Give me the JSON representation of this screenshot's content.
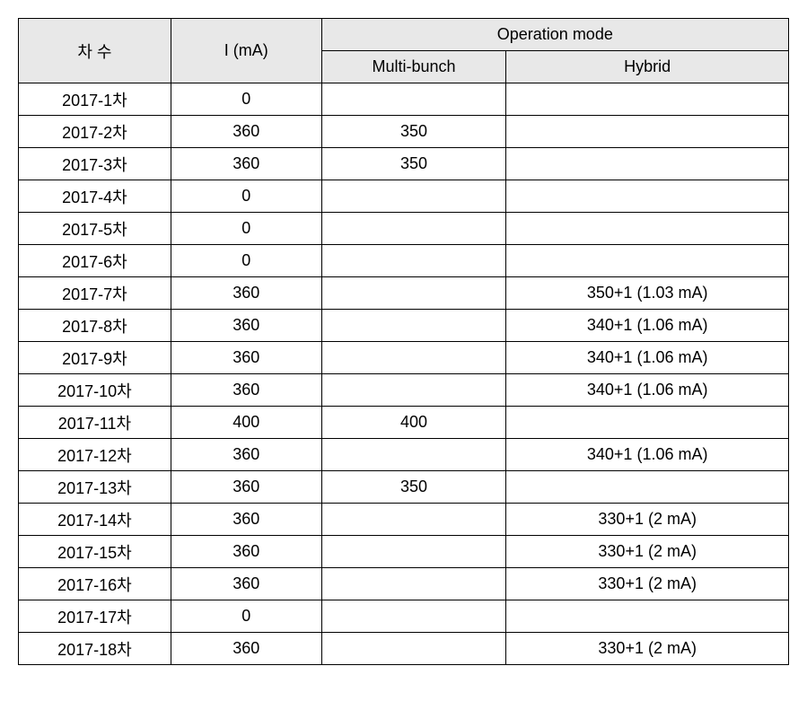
{
  "table": {
    "background_color": "#ffffff",
    "header_background_color": "#e8e8e8",
    "border_color": "#000000",
    "font_size": 18,
    "headers": {
      "session": "차   수",
      "current": "I (mA)",
      "operation_mode": "Operation   mode",
      "multi_bunch": "Multi-bunch",
      "hybrid": "Hybrid"
    },
    "column_widths": {
      "session": 170,
      "current": 168,
      "multi_bunch": 206,
      "hybrid": 315
    },
    "rows": [
      {
        "session": "2017-1차",
        "current": "0",
        "multi_bunch": "",
        "hybrid": ""
      },
      {
        "session": "2017-2차",
        "current": "360",
        "multi_bunch": "350",
        "hybrid": ""
      },
      {
        "session": "2017-3차",
        "current": "360",
        "multi_bunch": "350",
        "hybrid": ""
      },
      {
        "session": "2017-4차",
        "current": "0",
        "multi_bunch": "",
        "hybrid": ""
      },
      {
        "session": "2017-5차",
        "current": "0",
        "multi_bunch": "",
        "hybrid": ""
      },
      {
        "session": "2017-6차",
        "current": "0",
        "multi_bunch": "",
        "hybrid": ""
      },
      {
        "session": "2017-7차",
        "current": "360",
        "multi_bunch": "",
        "hybrid": "350+1 (1.03 mA)"
      },
      {
        "session": "2017-8차",
        "current": "360",
        "multi_bunch": "",
        "hybrid": "340+1 (1.06 mA)"
      },
      {
        "session": "2017-9차",
        "current": "360",
        "multi_bunch": "",
        "hybrid": "340+1 (1.06 mA)"
      },
      {
        "session": "2017-10차",
        "current": "360",
        "multi_bunch": "",
        "hybrid": "340+1 (1.06 mA)"
      },
      {
        "session": "2017-11차",
        "current": "400",
        "multi_bunch": "400",
        "hybrid": ""
      },
      {
        "session": "2017-12차",
        "current": "360",
        "multi_bunch": "",
        "hybrid": "340+1 (1.06 mA)"
      },
      {
        "session": "2017-13차",
        "current": "360",
        "multi_bunch": "350",
        "hybrid": ""
      },
      {
        "session": "2017-14차",
        "current": "360",
        "multi_bunch": "",
        "hybrid": "330+1 (2 mA)"
      },
      {
        "session": "2017-15차",
        "current": "360",
        "multi_bunch": "",
        "hybrid": "330+1 (2 mA)"
      },
      {
        "session": "2017-16차",
        "current": "360",
        "multi_bunch": "",
        "hybrid": "330+1 (2 mA)"
      },
      {
        "session": "2017-17차",
        "current": "0",
        "multi_bunch": "",
        "hybrid": ""
      },
      {
        "session": "2017-18차",
        "current": "360",
        "multi_bunch": "",
        "hybrid": "330+1 (2 mA)"
      }
    ]
  }
}
